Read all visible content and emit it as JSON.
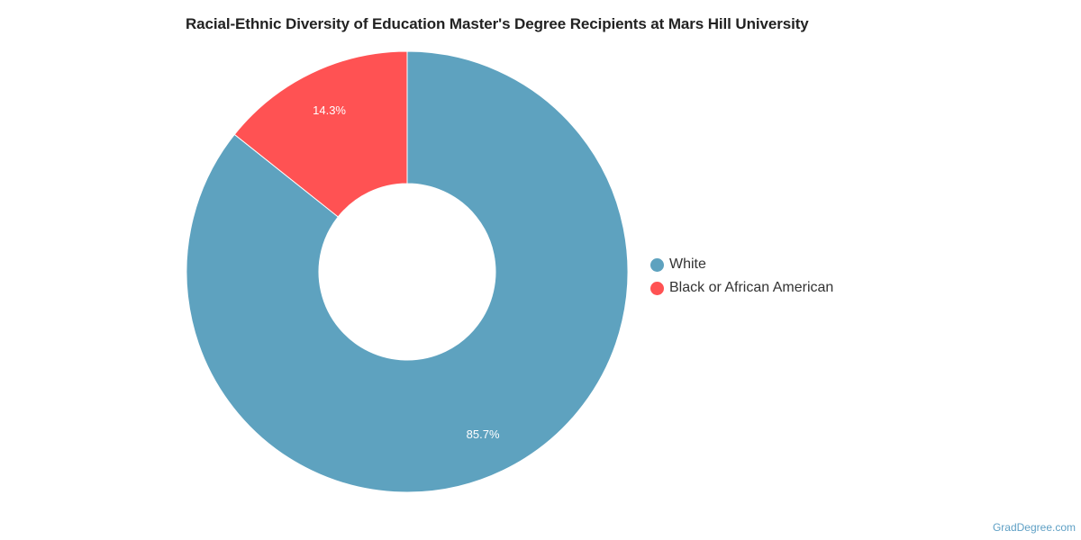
{
  "chart_data": {
    "type": "pie",
    "title": "Racial-Ethnic Diversity of Education Master's Degree Recipients at Mars Hill University",
    "donut": true,
    "slices": [
      {
        "label": "White",
        "value": 85.7,
        "display": "85.7%",
        "color": "#5ea2bf"
      },
      {
        "label": "Black or African American",
        "value": 14.3,
        "display": "14.3%",
        "color": "#ff5253"
      }
    ],
    "legend_position": "right"
  },
  "watermark": "GradDegree.com"
}
